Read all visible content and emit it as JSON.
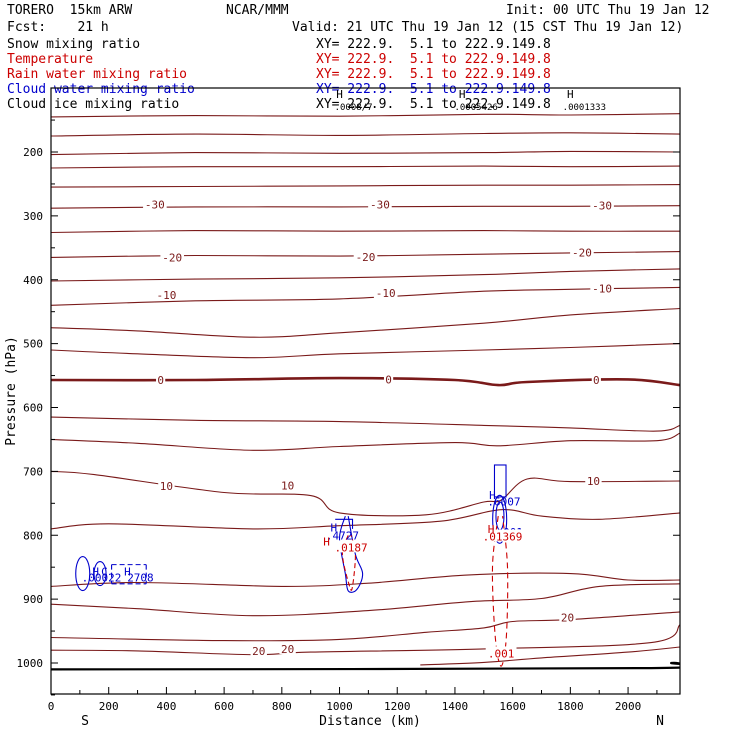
{
  "header": {
    "model": "TORERO  15km ARW",
    "center": "NCAR/MMM",
    "init": "Init: 00 UTC Thu 19 Jan 12",
    "fcst": "Fcst:    21 h",
    "valid": "Valid: 21 UTC Thu 19 Jan 12 (15 CST Thu 19 Jan 12)"
  },
  "fields": [
    {
      "name": "Snow mixing ratio",
      "xy": "XY= 222.9.  5.1 to 222.9.149.8",
      "color": "#000000"
    },
    {
      "name": "Temperature",
      "xy": "XY= 222.9.  5.1 to 222.9.149.8",
      "color": "#cc0000"
    },
    {
      "name": "Rain water mixing ratio",
      "xy": "XY= 222.9.  5.1 to 222.9.149.8",
      "color": "#cc0000"
    },
    {
      "name": "Cloud water mixing ratio",
      "xy": "XY= 222.9.  5.1 to 222.9.149.8",
      "color": "#0000cc"
    },
    {
      "name": "Cloud ice mixing ratio",
      "xy": "XY= 222.9.  5.1 to 222.9.149.8",
      "color": "#000000"
    }
  ],
  "chart_data": {
    "type": "line",
    "xlabel": "Distance (km)",
    "ylabel": "Pressure (hPa)",
    "xlim": [
      0,
      2180
    ],
    "ylim": [
      1050,
      140
    ],
    "x_ticks": [
      0,
      200,
      400,
      600,
      800,
      1000,
      1200,
      1400,
      1600,
      1800,
      2000
    ],
    "y_ticks": [
      200,
      300,
      400,
      500,
      600,
      700,
      800,
      900,
      1000
    ],
    "end_labels": {
      "left": "S",
      "right": "N"
    },
    "colors": {
      "temperature": "#7a1a1a",
      "rain": "#cc0000",
      "cloud_water": "#0000cc",
      "ground": "#000000"
    },
    "temperature_contours": [
      {
        "x": [
          0,
          500,
          1000,
          1500,
          1800,
          2180
        ],
        "p": [
          145,
          143,
          144,
          141,
          142,
          140
        ]
      },
      {
        "x": [
          0,
          500,
          1000,
          1500,
          1800,
          2180
        ],
        "p": [
          175,
          172,
          174,
          171,
          170,
          172
        ]
      },
      {
        "x": [
          0,
          500,
          1000,
          1500,
          1800,
          2180
        ],
        "p": [
          204,
          201,
          202,
          201,
          199,
          200
        ]
      },
      {
        "x": [
          0,
          500,
          1000,
          1500,
          1800,
          2180
        ],
        "p": [
          225,
          223,
          223,
          222,
          223,
          222
        ]
      },
      {
        "x": [
          0,
          500,
          1000,
          1500,
          1800,
          2180
        ],
        "p": [
          255,
          254,
          253,
          252,
          252,
          251
        ]
      },
      {
        "x": [
          0,
          500,
          1000,
          1500,
          1800,
          2180
        ],
        "p": [
          288,
          286,
          286,
          285,
          285,
          284
        ]
      },
      {
        "x": [
          0,
          500,
          1000,
          1500,
          1800,
          2180
        ],
        "p": [
          326,
          323,
          324,
          323,
          324,
          324
        ]
      },
      {
        "x": [
          0,
          500,
          1000,
          1500,
          1800,
          2180
        ],
        "p": [
          365,
          362,
          363,
          360,
          358,
          356
        ]
      },
      {
        "x": [
          0,
          500,
          1000,
          1500,
          1800,
          2180
        ],
        "p": [
          402,
          399,
          397,
          392,
          387,
          383
        ]
      },
      {
        "x": [
          0,
          500,
          1000,
          1500,
          1800,
          2180
        ],
        "p": [
          440,
          433,
          430,
          418,
          415,
          412
        ]
      },
      {
        "x": [
          0,
          300,
          700,
          1000,
          1500,
          1800,
          2180
        ],
        "p": [
          475,
          480,
          490,
          483,
          468,
          455,
          445
        ]
      },
      {
        "x": [
          0,
          300,
          700,
          1000,
          1500,
          1800,
          2180
        ],
        "p": [
          510,
          516,
          522,
          516,
          510,
          506,
          500
        ]
      },
      {
        "x": [
          0,
          500,
          1000,
          1400,
          1550,
          1650,
          2000,
          2180
        ],
        "p": [
          557,
          557,
          554,
          557,
          565,
          560,
          556,
          565
        ]
      },
      {
        "x": [
          0,
          500,
          1000,
          1500,
          1800,
          2100,
          2180
        ],
        "p": [
          615,
          620,
          622,
          628,
          632,
          637,
          628
        ]
      },
      {
        "x": [
          0,
          300,
          700,
          1000,
          1400,
          1550,
          1800,
          2100,
          2180
        ],
        "p": [
          650,
          656,
          667,
          661,
          655,
          660,
          652,
          652,
          640
        ]
      },
      {
        "x": [
          0,
          150,
          600,
          900,
          1000,
          1300,
          1500,
          1560,
          1650,
          1800,
          2180
        ],
        "p": [
          700,
          705,
          733,
          738,
          765,
          768,
          748,
          745,
          712,
          716,
          715
        ]
      },
      {
        "x": [
          0,
          200,
          700,
          1000,
          1350,
          1560,
          1700,
          1900,
          2180
        ],
        "p": [
          790,
          782,
          790,
          785,
          778,
          760,
          770,
          775,
          765
        ]
      },
      {
        "x": [
          0,
          300,
          800,
          1100,
          1450,
          1800,
          2000,
          2180
        ],
        "p": [
          880,
          874,
          880,
          875,
          862,
          860,
          870,
          870
        ]
      },
      {
        "x": [
          0,
          300,
          700,
          1100,
          1450,
          1700,
          1900,
          2180
        ],
        "p": [
          908,
          915,
          926,
          918,
          904,
          899,
          880,
          876
        ]
      },
      {
        "x": [
          0,
          600,
          1000,
          1300,
          1500,
          1600,
          1800,
          2180
        ],
        "p": [
          960,
          965,
          963,
          952,
          945,
          935,
          932,
          920
        ]
      },
      {
        "x": [
          0,
          300,
          700,
          900,
          1500,
          2080,
          2180
        ],
        "p": [
          980,
          981,
          987,
          983,
          978,
          968,
          940
        ]
      },
      {
        "x": [
          1280,
          1500,
          1700,
          2000,
          2180
        ],
        "p": [
          1003,
          999,
          992,
          983,
          975
        ]
      }
    ],
    "temperature_labels": [
      {
        "text": "-30",
        "x": 360,
        "p": 282
      },
      {
        "text": "-30",
        "x": 1140,
        "p": 282
      },
      {
        "text": "-30",
        "x": 1910,
        "p": 284
      },
      {
        "text": "-20",
        "x": 420,
        "p": 365
      },
      {
        "text": "-20",
        "x": 1090,
        "p": 364
      },
      {
        "text": "-20",
        "x": 1840,
        "p": 357
      },
      {
        "text": "-10",
        "x": 400,
        "p": 424
      },
      {
        "text": "-10",
        "x": 1160,
        "p": 421
      },
      {
        "text": "-10",
        "x": 1910,
        "p": 414
      },
      {
        "text": "0",
        "x": 380,
        "p": 557
      },
      {
        "text": "0",
        "x": 1170,
        "p": 556
      },
      {
        "text": "0",
        "x": 1890,
        "p": 557
      },
      {
        "text": "10",
        "x": 400,
        "p": 723
      },
      {
        "text": "10",
        "x": 820,
        "p": 722
      },
      {
        "text": "10",
        "x": 1880,
        "p": 715
      },
      {
        "text": "20",
        "x": 720,
        "p": 981
      },
      {
        "text": "20",
        "x": 820,
        "p": 978
      },
      {
        "text": "20",
        "x": 1790,
        "p": 929
      }
    ],
    "ground_pressure": [
      {
        "x": 0,
        "p": 1010
      },
      {
        "x": 2080,
        "p": 1008
      },
      {
        "x": 2150,
        "p": 1000
      },
      {
        "x": 2180,
        "p": 1001
      }
    ],
    "cloud_water_labels": [
      {
        "text": ".00022",
        "x": 175,
        "p": 866
      },
      {
        "text": "2708",
        "x": 310,
        "p": 866
      },
      {
        "text": ".4727",
        "x": 1010,
        "p": 800
      },
      {
        "text": ".6007",
        "x": 1570,
        "p": 747
      },
      {
        "text": ".001",
        "x": 1590,
        "p": 795
      }
    ],
    "rain_labels": [
      {
        "text": ".0187",
        "x": 1040,
        "p": 819
      },
      {
        "text": ".01369",
        "x": 1565,
        "p": 802
      },
      {
        "text": ".001",
        "x": 1560,
        "p": 985
      }
    ],
    "extrema_labels": [
      {
        "text": "H",
        "x": 155,
        "p": 857,
        "color": "#0000cc"
      },
      {
        "text": "C",
        "x": 185,
        "p": 857,
        "color": "#0000cc"
      },
      {
        "text": "H",
        "x": 265,
        "p": 857,
        "color": "#0000cc"
      },
      {
        "text": "H",
        "x": 980,
        "p": 788,
        "color": "#0000cc"
      },
      {
        "text": "H",
        "x": 1530,
        "p": 737,
        "color": "#0000cc"
      },
      {
        "text": "H",
        "x": 955,
        "p": 810,
        "color": "#cc0000"
      },
      {
        "text": "H",
        "x": 1525,
        "p": 790,
        "color": "#cc0000"
      }
    ],
    "top_extrema": [
      {
        "text": "H",
        "value": ".0008/7",
        "x": 1000
      },
      {
        "text": "H",
        "value": ".0005426",
        "x": 1425
      },
      {
        "text": "H",
        "value": ".0001333",
        "x": 1800
      }
    ]
  }
}
